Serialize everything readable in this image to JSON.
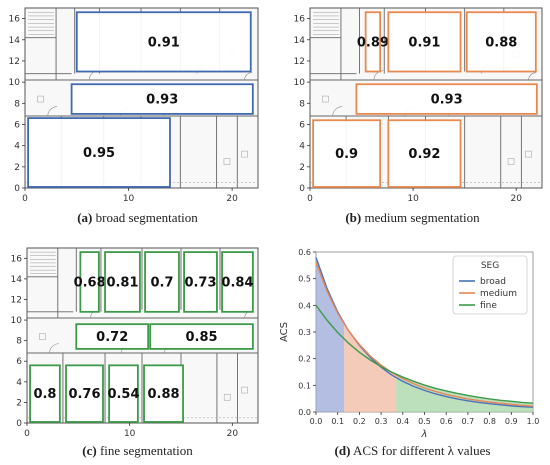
{
  "floorplans": [
    {
      "id": "a",
      "caption_label": "(a)",
      "caption_text": "broad segmentation",
      "color": "#4169b0",
      "x_ticks": [
        "0",
        "10",
        "20"
      ],
      "y_ticks": [
        "0",
        "2",
        "4",
        "6",
        "8",
        "10",
        "12",
        "14",
        "16"
      ],
      "regions": [
        {
          "x0": 5.0,
          "x1": 21.8,
          "y0": 11.0,
          "y1": 16.6,
          "label": "0.91"
        },
        {
          "x0": 4.5,
          "x1": 22.0,
          "y0": 7.0,
          "y1": 9.8,
          "label": "0.93"
        },
        {
          "x0": 0.3,
          "x1": 14.0,
          "y0": 0.1,
          "y1": 6.6,
          "label": "0.95"
        }
      ]
    },
    {
      "id": "b",
      "caption_label": "(b)",
      "caption_text": "medium segmentation",
      "color": "#e88a4f",
      "x_ticks": [
        "0",
        "10",
        "20"
      ],
      "y_ticks": [
        "0",
        "2",
        "4",
        "6",
        "8",
        "10",
        "12",
        "14",
        "16"
      ],
      "regions": [
        {
          "x0": 5.4,
          "x1": 6.8,
          "y0": 11.0,
          "y1": 16.6,
          "label": "0.89"
        },
        {
          "x0": 7.6,
          "x1": 14.6,
          "y0": 11.0,
          "y1": 16.6,
          "label": "0.91"
        },
        {
          "x0": 15.2,
          "x1": 21.9,
          "y0": 11.0,
          "y1": 16.6,
          "label": "0.88"
        },
        {
          "x0": 4.5,
          "x1": 22.0,
          "y0": 7.0,
          "y1": 9.8,
          "label": "0.93"
        },
        {
          "x0": 0.3,
          "x1": 6.8,
          "y0": 0.1,
          "y1": 6.4,
          "label": "0.9"
        },
        {
          "x0": 7.6,
          "x1": 14.6,
          "y0": 0.1,
          "y1": 6.4,
          "label": "0.92"
        }
      ]
    },
    {
      "id": "c",
      "caption_label": "(c)",
      "caption_text": "fine segmentation",
      "color": "#3d9a49",
      "x_ticks": [
        "0",
        "10",
        "20"
      ],
      "y_ticks": [
        "0",
        "2",
        "4",
        "6",
        "8",
        "10",
        "12",
        "14",
        "16"
      ],
      "regions": [
        {
          "x0": 5.2,
          "x1": 7.0,
          "y0": 10.8,
          "y1": 16.6,
          "label": "0.68"
        },
        {
          "x0": 7.6,
          "x1": 11.0,
          "y0": 10.8,
          "y1": 16.6,
          "label": "0.81"
        },
        {
          "x0": 11.5,
          "x1": 14.8,
          "y0": 10.8,
          "y1": 16.6,
          "label": "0.7"
        },
        {
          "x0": 15.3,
          "x1": 18.5,
          "y0": 10.8,
          "y1": 16.6,
          "label": "0.73"
        },
        {
          "x0": 19.0,
          "x1": 22.0,
          "y0": 10.8,
          "y1": 16.6,
          "label": "0.84"
        },
        {
          "x0": 4.8,
          "x1": 11.8,
          "y0": 7.2,
          "y1": 9.6,
          "label": "0.72"
        },
        {
          "x0": 12.0,
          "x1": 22.0,
          "y0": 7.2,
          "y1": 9.6,
          "label": "0.85"
        },
        {
          "x0": 0.3,
          "x1": 3.2,
          "y0": 0.1,
          "y1": 5.6,
          "label": "0.8"
        },
        {
          "x0": 3.8,
          "x1": 7.4,
          "y0": 0.1,
          "y1": 5.6,
          "label": "0.76"
        },
        {
          "x0": 8.0,
          "x1": 10.8,
          "y0": 0.1,
          "y1": 5.6,
          "label": "0.54"
        },
        {
          "x0": 11.4,
          "x1": 15.2,
          "y0": 0.1,
          "y1": 5.6,
          "label": "0.88"
        }
      ]
    }
  ],
  "chart_data": {
    "type": "area",
    "caption_label": "(d)",
    "caption_text": "ACS for different λ values",
    "xlabel": "λ",
    "ylabel": "ACS",
    "xlim": [
      0.0,
      1.0
    ],
    "ylim": [
      0.0,
      0.6
    ],
    "x_ticks": [
      "0.0",
      "0.1",
      "0.2",
      "0.3",
      "0.4",
      "0.5",
      "0.6",
      "0.7",
      "0.8",
      "0.9",
      "1.0"
    ],
    "y_ticks": [
      "0.0",
      "0.1",
      "0.2",
      "0.3",
      "0.4",
      "0.5",
      "0.6"
    ],
    "legend_title": "SEG",
    "legend_position": "top-right",
    "x": [
      0.0,
      0.05,
      0.1,
      0.15,
      0.2,
      0.25,
      0.3,
      0.35,
      0.4,
      0.45,
      0.5,
      0.55,
      0.6,
      0.65,
      0.7,
      0.75,
      0.8,
      0.85,
      0.9,
      0.95,
      1.0
    ],
    "series": [
      {
        "name": "broad",
        "color": "#4a72b8",
        "values": [
          0.58,
          0.465,
          0.375,
          0.305,
          0.25,
          0.205,
          0.168,
          0.138,
          0.115,
          0.096,
          0.081,
          0.068,
          0.058,
          0.049,
          0.042,
          0.036,
          0.031,
          0.027,
          0.023,
          0.02,
          0.018
        ]
      },
      {
        "name": "medium",
        "color": "#e8875a",
        "values": [
          0.56,
          0.455,
          0.37,
          0.305,
          0.253,
          0.21,
          0.176,
          0.148,
          0.125,
          0.106,
          0.09,
          0.077,
          0.066,
          0.057,
          0.049,
          0.043,
          0.037,
          0.033,
          0.029,
          0.025,
          0.022
        ]
      },
      {
        "name": "fine",
        "color": "#3e9a4c",
        "values": [
          0.4,
          0.345,
          0.298,
          0.258,
          0.224,
          0.195,
          0.17,
          0.149,
          0.131,
          0.115,
          0.101,
          0.089,
          0.079,
          0.07,
          0.062,
          0.055,
          0.049,
          0.044,
          0.04,
          0.036,
          0.033
        ]
      }
    ],
    "shaded_regions": [
      {
        "from": 0.0,
        "to": 0.13,
        "color": "#9aa8d6"
      },
      {
        "from": 0.13,
        "to": 0.37,
        "color": "#f0b9a0"
      },
      {
        "from": 0.37,
        "to": 1.0,
        "color": "#a6d4a6"
      }
    ]
  }
}
